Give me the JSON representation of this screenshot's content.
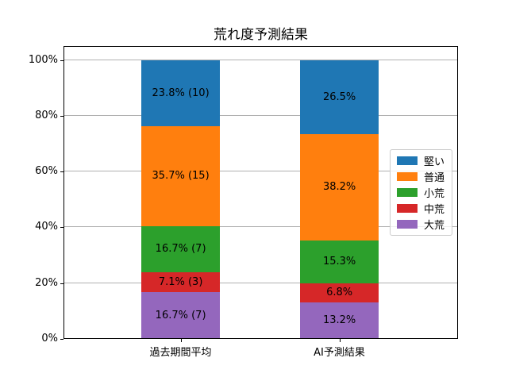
{
  "title": "荒れ度予測結果",
  "chart_data": {
    "type": "bar",
    "stacked": true,
    "unit": "%",
    "title": "荒れ度予測結果",
    "categories": [
      "過去期間平均",
      "AI予測結果"
    ],
    "series": [
      {
        "name": "堅い",
        "color": "#1f77b4",
        "values": [
          23.8,
          26.5
        ],
        "counts": [
          10,
          null
        ],
        "bar_labels": [
          "23.8% (10)",
          "26.5%"
        ]
      },
      {
        "name": "普通",
        "color": "#ff7f0e",
        "values": [
          35.7,
          38.2
        ],
        "counts": [
          15,
          null
        ],
        "bar_labels": [
          "35.7% (15)",
          "38.2%"
        ]
      },
      {
        "name": "小荒",
        "color": "#2ca02c",
        "values": [
          16.7,
          15.3
        ],
        "counts": [
          7,
          null
        ],
        "bar_labels": [
          "16.7% (7)",
          "15.3%"
        ]
      },
      {
        "name": "中荒",
        "color": "#d62728",
        "values": [
          7.1,
          6.8
        ],
        "counts": [
          3,
          null
        ],
        "bar_labels": [
          "7.1% (3)",
          "6.8%"
        ]
      },
      {
        "name": "大荒",
        "color": "#9467bd",
        "values": [
          16.7,
          13.2
        ],
        "counts": [
          7,
          null
        ],
        "bar_labels": [
          "16.7% (7)",
          "13.2%"
        ]
      }
    ],
    "stack_order_bottom_to_top": [
      "大荒",
      "中荒",
      "小荒",
      "普通",
      "堅い"
    ],
    "xlabel": "",
    "ylabel": "",
    "ylim": [
      0,
      105
    ],
    "yticks": [
      {
        "value": 0,
        "label": "0%"
      },
      {
        "value": 20,
        "label": "20%"
      },
      {
        "value": 40,
        "label": "40%"
      },
      {
        "value": 60,
        "label": "60%"
      },
      {
        "value": 80,
        "label": "80%"
      },
      {
        "value": 100,
        "label": "100%"
      }
    ],
    "grid": true,
    "legend_position": "center-right-inside"
  }
}
